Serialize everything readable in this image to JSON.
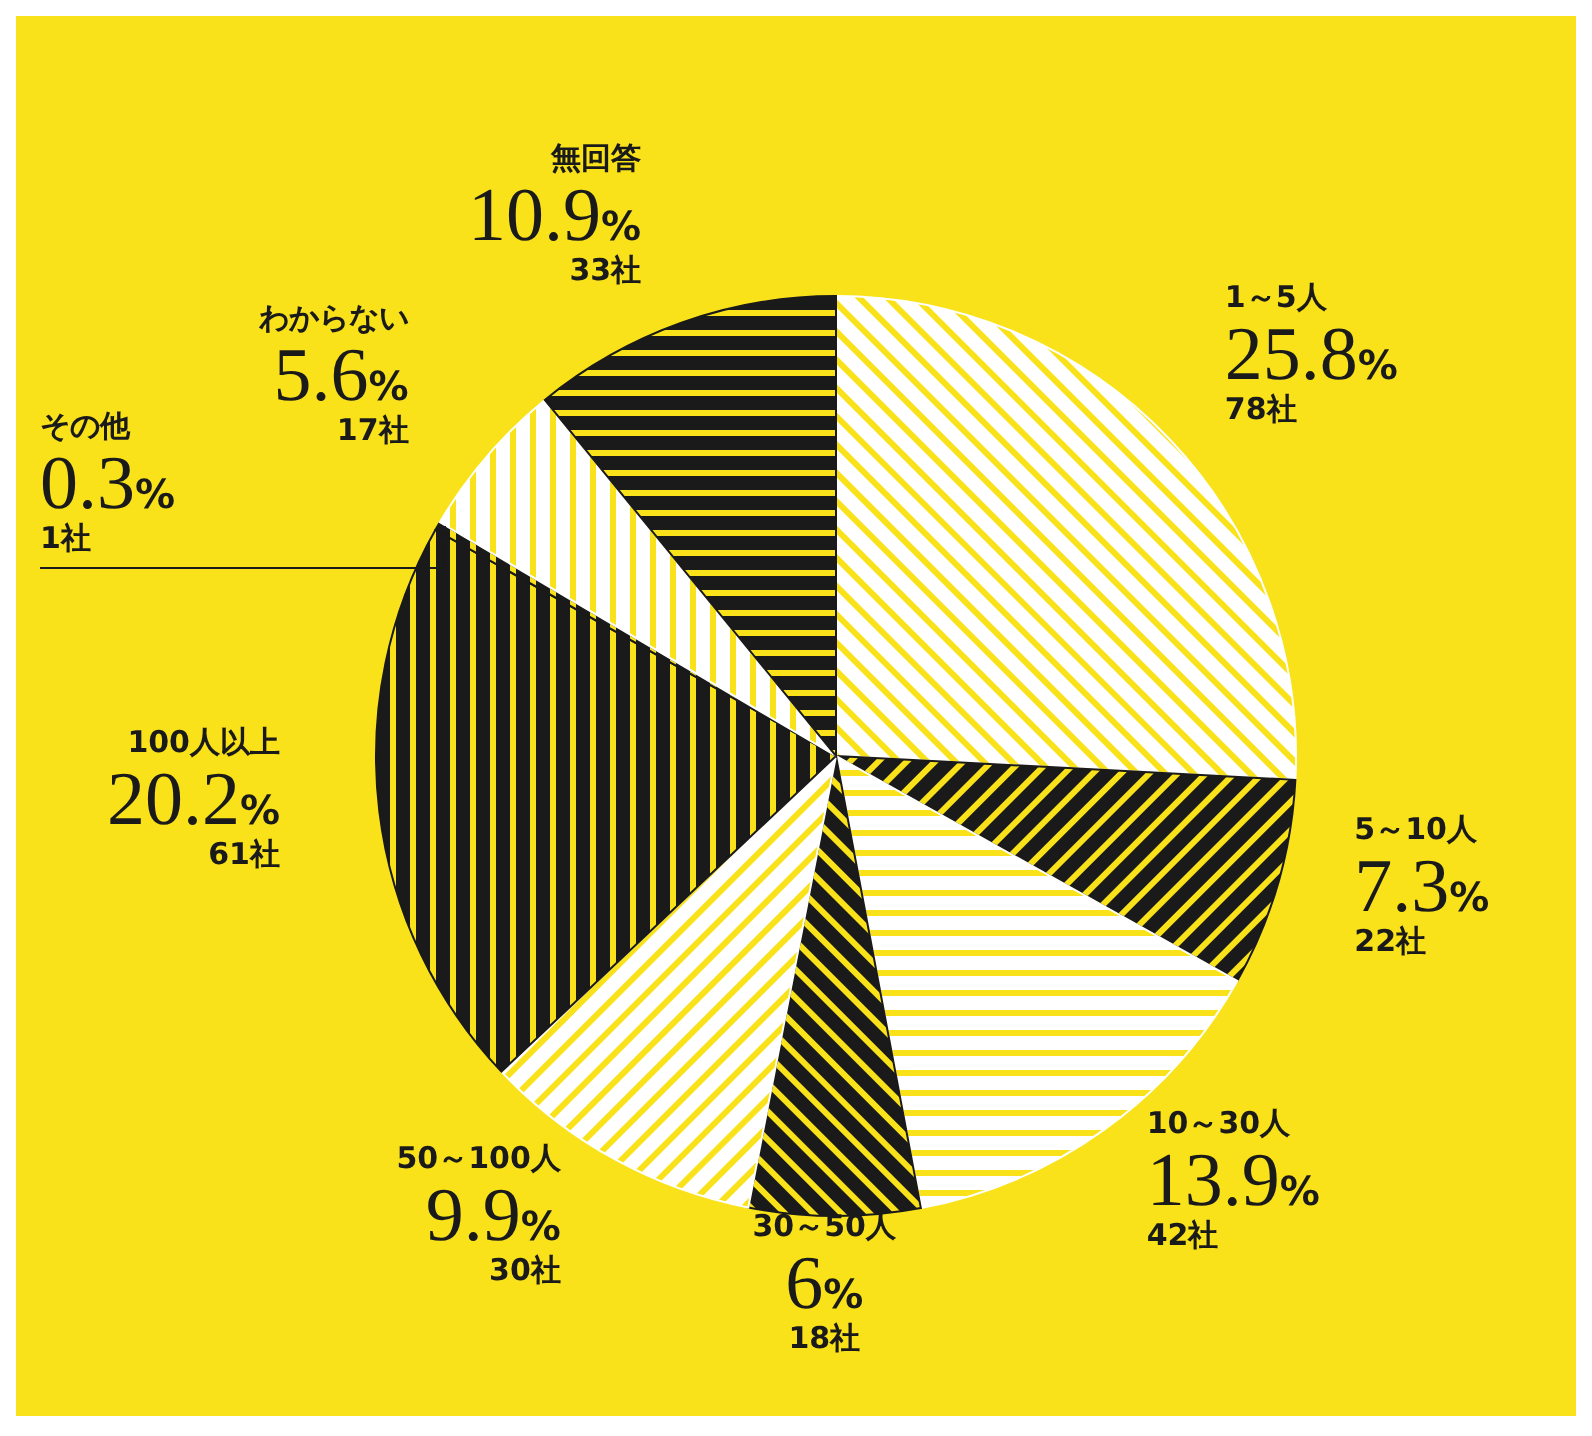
{
  "chart_data": {
    "type": "pie",
    "categories": [
      "1～5人",
      "5～10人",
      "10～30人",
      "30～50人",
      "50～100人",
      "100人以上",
      "その他",
      "わからない",
      "無回答"
    ],
    "values": [
      25.8,
      7.3,
      13.9,
      6,
      9.9,
      20.2,
      0.3,
      5.6,
      10.9
    ],
    "colors": [
      "#ffffff",
      "#1a1a1a",
      "#ffffff",
      "#1a1a1a",
      "#ffffff",
      "#1a1a1a",
      "#1a1a1a",
      "#ffffff",
      "#1a1a1a"
    ],
    "value_labels": [
      "25.8%\n78社",
      "7.3%\n22社",
      "13.9%\n42社",
      "6%\n18社",
      "9.9%\n30社",
      "20.2%\n61社",
      "0.3%\n1社",
      "5.6%\n17社",
      "10.9%\n33社"
    ]
  }
}
